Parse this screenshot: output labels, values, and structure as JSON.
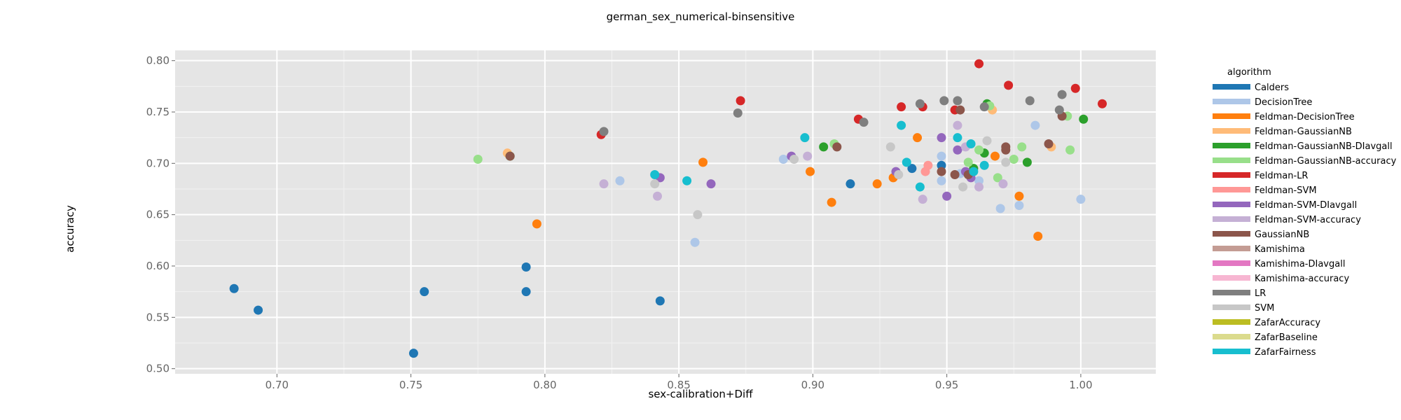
{
  "chart_data": {
    "type": "scatter",
    "title": "german_sex_numerical-binsensitive",
    "xlabel": "sex-calibration+Diff",
    "ylabel": "accuracy",
    "xlim": [
      0.662,
      1.028
    ],
    "ylim": [
      0.495,
      0.81
    ],
    "xticks": [
      "0.70",
      "0.75",
      "0.80",
      "0.85",
      "0.90",
      "0.95",
      "1.00"
    ],
    "yticks": [
      "0.50",
      "0.55",
      "0.60",
      "0.65",
      "0.70",
      "0.75",
      "0.80"
    ],
    "grid": true,
    "background": "#e5e5e5",
    "legend": {
      "title": "algorithm",
      "placement": "right",
      "entries": [
        {
          "name": "Calders",
          "color": "#1f77b4"
        },
        {
          "name": "DecisionTree",
          "color": "#aec7e8"
        },
        {
          "name": "Feldman-DecisionTree",
          "color": "#ff7f0e"
        },
        {
          "name": "Feldman-GaussianNB",
          "color": "#ffbb78"
        },
        {
          "name": "Feldman-GaussianNB-DIavgall",
          "color": "#2ca02c"
        },
        {
          "name": "Feldman-GaussianNB-accuracy",
          "color": "#98df8a"
        },
        {
          "name": "Feldman-LR",
          "color": "#d62728"
        },
        {
          "name": "Feldman-SVM",
          "color": "#ff9896"
        },
        {
          "name": "Feldman-SVM-DIavgall",
          "color": "#9467bd"
        },
        {
          "name": "Feldman-SVM-accuracy",
          "color": "#c5b0d5"
        },
        {
          "name": "GaussianNB",
          "color": "#8c564b"
        },
        {
          "name": "Kamishima",
          "color": "#c49c94"
        },
        {
          "name": "Kamishima-DIavgall",
          "color": "#e377c2"
        },
        {
          "name": "Kamishima-accuracy",
          "color": "#f7b6d2"
        },
        {
          "name": "LR",
          "color": "#7f7f7f"
        },
        {
          "name": "SVM",
          "color": "#c7c7c7"
        },
        {
          "name": "ZafarAccuracy",
          "color": "#bcbd22"
        },
        {
          "name": "ZafarBaseline",
          "color": "#dbdb8d"
        },
        {
          "name": "ZafarFairness",
          "color": "#17becf"
        }
      ]
    },
    "series": [
      {
        "name": "Calders",
        "points": [
          [
            0.684,
            0.578
          ],
          [
            0.693,
            0.557
          ],
          [
            0.751,
            0.515
          ],
          [
            0.755,
            0.575
          ],
          [
            0.793,
            0.599
          ],
          [
            0.793,
            0.575
          ],
          [
            0.843,
            0.566
          ],
          [
            0.914,
            0.68
          ],
          [
            0.937,
            0.695
          ],
          [
            0.948,
            0.698
          ]
        ]
      },
      {
        "name": "DecisionTree",
        "points": [
          [
            0.828,
            0.683
          ],
          [
            0.856,
            0.623
          ],
          [
            0.889,
            0.704
          ],
          [
            0.948,
            0.707
          ],
          [
            0.948,
            0.683
          ],
          [
            0.97,
            0.656
          ],
          [
            0.977,
            0.659
          ],
          [
            0.983,
            0.737
          ],
          [
            1.0,
            0.665
          ],
          [
            0.955,
            0.69
          ],
          [
            0.962,
            0.683
          ]
        ]
      },
      {
        "name": "Feldman-DecisionTree",
        "points": [
          [
            0.797,
            0.641
          ],
          [
            0.859,
            0.701
          ],
          [
            0.899,
            0.692
          ],
          [
            0.907,
            0.662
          ],
          [
            0.924,
            0.68
          ],
          [
            0.93,
            0.686
          ],
          [
            0.939,
            0.725
          ],
          [
            0.968,
            0.707
          ],
          [
            0.977,
            0.668
          ],
          [
            0.984,
            0.629
          ]
        ]
      },
      {
        "name": "Feldman-GaussianNB",
        "points": [
          [
            0.786,
            0.71
          ],
          [
            0.967,
            0.752
          ],
          [
            0.989,
            0.716
          ]
        ]
      },
      {
        "name": "Feldman-GaussianNB-DIavgall",
        "points": [
          [
            0.787,
            0.707
          ],
          [
            0.904,
            0.716
          ],
          [
            0.96,
            0.695
          ],
          [
            0.964,
            0.71
          ],
          [
            0.965,
            0.758
          ],
          [
            0.98,
            0.701
          ],
          [
            1.001,
            0.743
          ]
        ]
      },
      {
        "name": "Feldman-GaussianNB-accuracy",
        "points": [
          [
            0.775,
            0.704
          ],
          [
            0.908,
            0.719
          ],
          [
            0.958,
            0.701
          ],
          [
            0.962,
            0.713
          ],
          [
            0.966,
            0.756
          ],
          [
            0.969,
            0.686
          ],
          [
            0.975,
            0.704
          ],
          [
            0.978,
            0.716
          ],
          [
            0.995,
            0.746
          ],
          [
            0.996,
            0.713
          ]
        ]
      },
      {
        "name": "Feldman-LR",
        "points": [
          [
            0.821,
            0.728
          ],
          [
            0.873,
            0.761
          ],
          [
            0.917,
            0.743
          ],
          [
            0.933,
            0.755
          ],
          [
            0.941,
            0.755
          ],
          [
            0.953,
            0.752
          ],
          [
            0.962,
            0.797
          ],
          [
            0.973,
            0.776
          ],
          [
            0.998,
            0.773
          ],
          [
            1.008,
            0.758
          ]
        ]
      },
      {
        "name": "Feldman-SVM",
        "points": [
          [
            0.942,
            0.692
          ],
          [
            0.943,
            0.698
          ]
        ]
      },
      {
        "name": "Feldman-SVM-DIavgall",
        "points": [
          [
            0.843,
            0.686
          ],
          [
            0.862,
            0.68
          ],
          [
            0.892,
            0.707
          ],
          [
            0.931,
            0.692
          ],
          [
            0.948,
            0.725
          ],
          [
            0.95,
            0.668
          ],
          [
            0.954,
            0.713
          ],
          [
            0.957,
            0.692
          ],
          [
            0.959,
            0.686
          ]
        ]
      },
      {
        "name": "Feldman-SVM-accuracy",
        "points": [
          [
            0.822,
            0.68
          ],
          [
            0.842,
            0.668
          ],
          [
            0.898,
            0.707
          ],
          [
            0.941,
            0.665
          ],
          [
            0.954,
            0.737
          ],
          [
            0.957,
            0.716
          ],
          [
            0.962,
            0.677
          ],
          [
            0.971,
            0.68
          ]
        ]
      },
      {
        "name": "GaussianNB",
        "points": [
          [
            0.787,
            0.707
          ],
          [
            0.909,
            0.716
          ],
          [
            0.948,
            0.692
          ],
          [
            0.953,
            0.689
          ],
          [
            0.955,
            0.752
          ],
          [
            0.958,
            0.689
          ],
          [
            0.972,
            0.713
          ],
          [
            0.972,
            0.716
          ],
          [
            0.988,
            0.719
          ],
          [
            0.993,
            0.746
          ]
        ]
      },
      {
        "name": "LR",
        "points": [
          [
            0.822,
            0.731
          ],
          [
            0.872,
            0.749
          ],
          [
            0.919,
            0.74
          ],
          [
            0.94,
            0.758
          ],
          [
            0.949,
            0.761
          ],
          [
            0.954,
            0.761
          ],
          [
            0.964,
            0.755
          ],
          [
            0.981,
            0.761
          ],
          [
            0.992,
            0.752
          ],
          [
            0.993,
            0.767
          ]
        ]
      },
      {
        "name": "SVM",
        "points": [
          [
            0.841,
            0.68
          ],
          [
            0.857,
            0.65
          ],
          [
            0.893,
            0.704
          ],
          [
            0.929,
            0.716
          ],
          [
            0.932,
            0.689
          ],
          [
            0.956,
            0.677
          ],
          [
            0.965,
            0.722
          ],
          [
            0.972,
            0.701
          ]
        ]
      },
      {
        "name": "ZafarFairness",
        "points": [
          [
            0.841,
            0.689
          ],
          [
            0.853,
            0.683
          ],
          [
            0.897,
            0.725
          ],
          [
            0.933,
            0.737
          ],
          [
            0.935,
            0.701
          ],
          [
            0.94,
            0.677
          ],
          [
            0.954,
            0.725
          ],
          [
            0.959,
            0.719
          ],
          [
            0.96,
            0.692
          ],
          [
            0.964,
            0.698
          ]
        ]
      }
    ]
  }
}
